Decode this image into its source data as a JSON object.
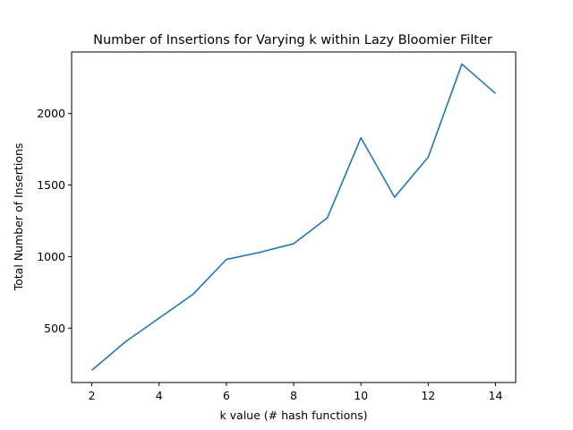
{
  "chart_data": {
    "type": "line",
    "title": "Number of Insertions for Varying k within Lazy Bloomier Filter",
    "xlabel": "k value (# hash functions)",
    "ylabel": "Total Number of Insertions",
    "xlim": [
      1.4,
      14.6
    ],
    "ylim": [
      120,
      2430
    ],
    "xticks": [
      2,
      4,
      6,
      8,
      10,
      12,
      14
    ],
    "yticks": [
      500,
      1000,
      1500,
      2000
    ],
    "grid": false,
    "legend": "none",
    "series": [
      {
        "color": "#1f77b4",
        "x": [
          2,
          3,
          4,
          5,
          6,
          7,
          8,
          9,
          10,
          11,
          12,
          13,
          14
        ],
        "y": [
          205,
          405,
          570,
          735,
          980,
          1030,
          1090,
          1270,
          1830,
          1415,
          1695,
          2345,
          2140
        ]
      }
    ]
  }
}
